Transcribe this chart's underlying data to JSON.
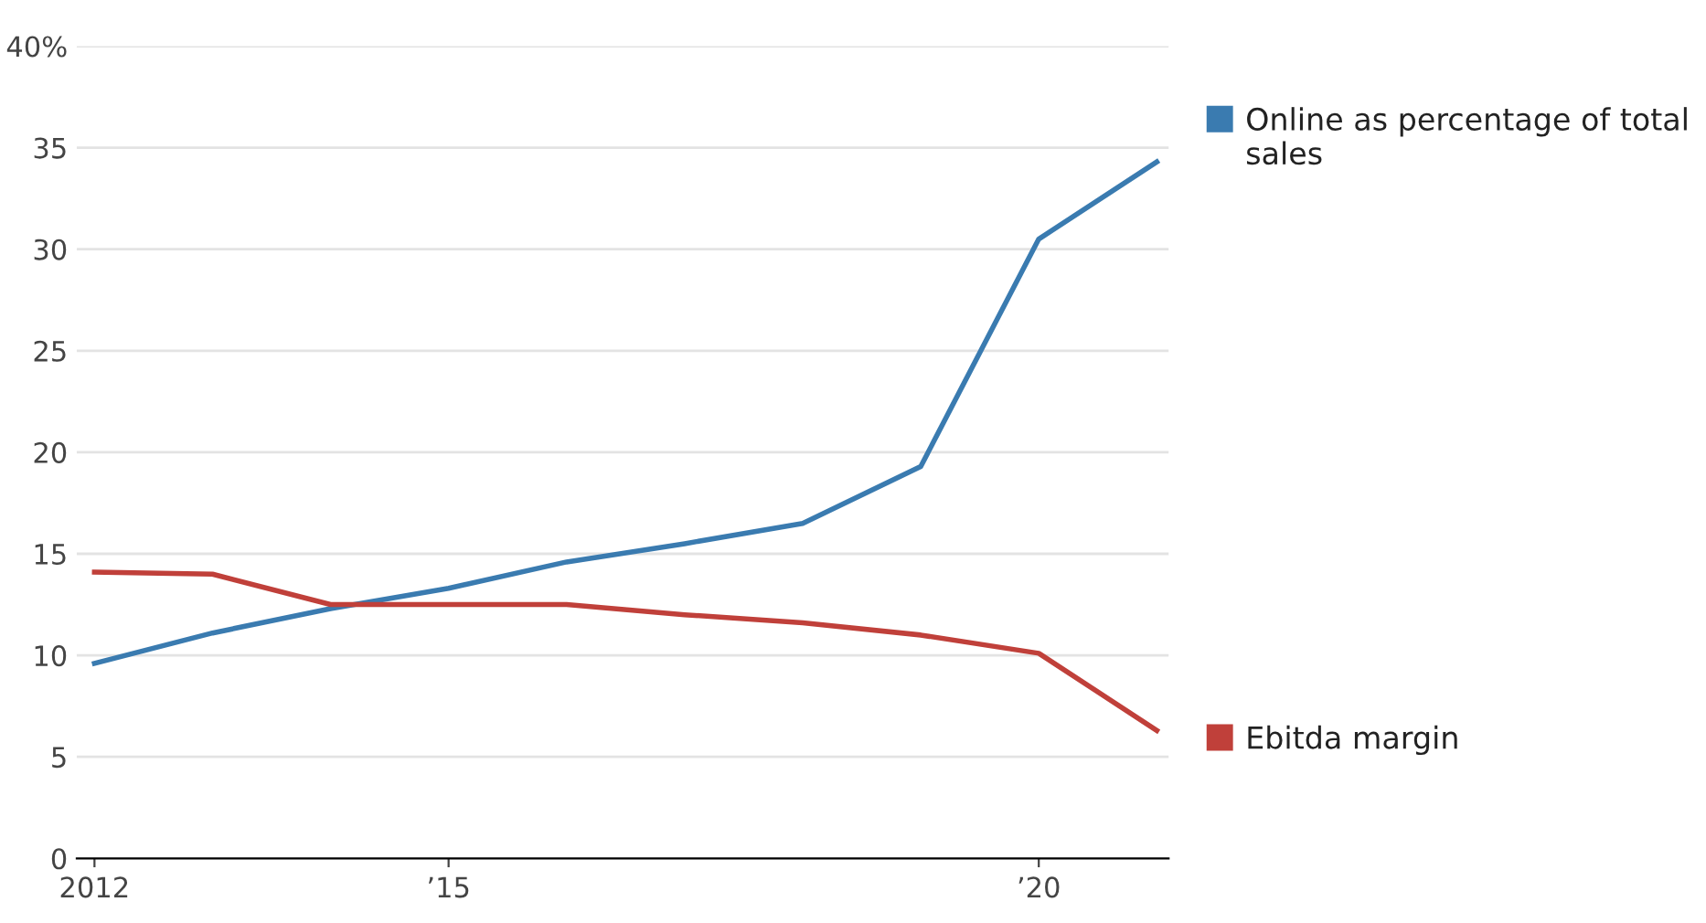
{
  "chart_data": {
    "type": "line",
    "x": [
      2012,
      2013,
      2014,
      2015,
      2016,
      2017,
      2018,
      2019,
      2020,
      2021
    ],
    "series": [
      {
        "name": "Online as percentage of total sales",
        "color": "#3a7bb0",
        "values": [
          9.6,
          11.1,
          12.3,
          13.3,
          14.6,
          15.5,
          16.5,
          19.3,
          30.5,
          34.3
        ]
      },
      {
        "name": "Ebitda margin",
        "color": "#c0403a",
        "values": [
          14.1,
          14.0,
          12.5,
          12.5,
          12.5,
          12.0,
          11.6,
          11.0,
          10.1,
          6.3
        ]
      }
    ],
    "xlim": [
      2011.85,
      2021.1
    ],
    "xticks": [
      2012,
      {
        "value": 2015,
        "label": "’15"
      },
      {
        "value": 2020,
        "label": "’20"
      }
    ],
    "ylim": [
      0,
      40
    ],
    "yticks": [
      0,
      5,
      10,
      15,
      20,
      25,
      30,
      35,
      {
        "value": 40,
        "label": "40%"
      }
    ],
    "grid": "y",
    "legend": "right",
    "marker": "none",
    "line_style": "solid"
  }
}
